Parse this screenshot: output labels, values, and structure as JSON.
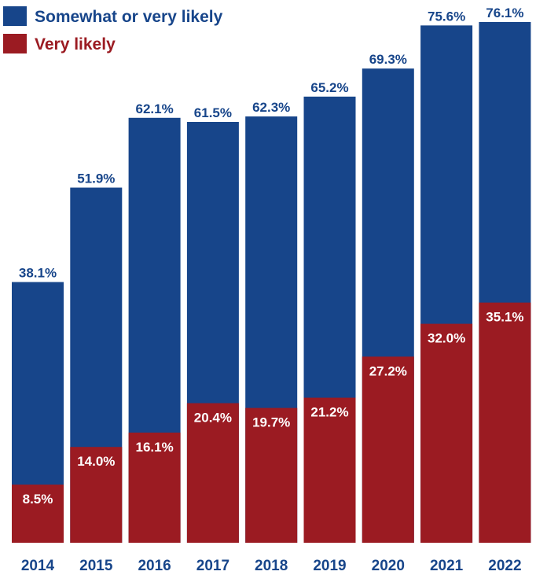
{
  "chart_data": {
    "type": "bar",
    "categories": [
      "2014",
      "2015",
      "2016",
      "2017",
      "2018",
      "2019",
      "2020",
      "2021",
      "2022"
    ],
    "series": [
      {
        "name": "Somewhat or very likely",
        "values": [
          38.1,
          51.9,
          62.1,
          61.5,
          62.3,
          65.2,
          69.3,
          75.6,
          76.1
        ],
        "labels": [
          "38.1%",
          "51.9%",
          "62.1%",
          "61.5%",
          "62.3%",
          "65.2%",
          "69.3%",
          "75.6%",
          "76.1%"
        ],
        "color": "#17458a"
      },
      {
        "name": "Very likely",
        "values": [
          8.5,
          14.0,
          16.1,
          20.4,
          19.7,
          21.2,
          27.2,
          32.0,
          35.1
        ],
        "labels": [
          "8.5%",
          "14.0%",
          "16.1%",
          "20.4%",
          "19.7%",
          "21.2%",
          "27.2%",
          "32.0%",
          "35.1%"
        ],
        "color": "#9b1b22"
      }
    ],
    "title": "",
    "xlabel": "",
    "ylabel": "",
    "ylim": [
      0,
      76.1
    ],
    "grid": false,
    "legend_position": "top-left",
    "tick_label_color": "#17458a"
  }
}
